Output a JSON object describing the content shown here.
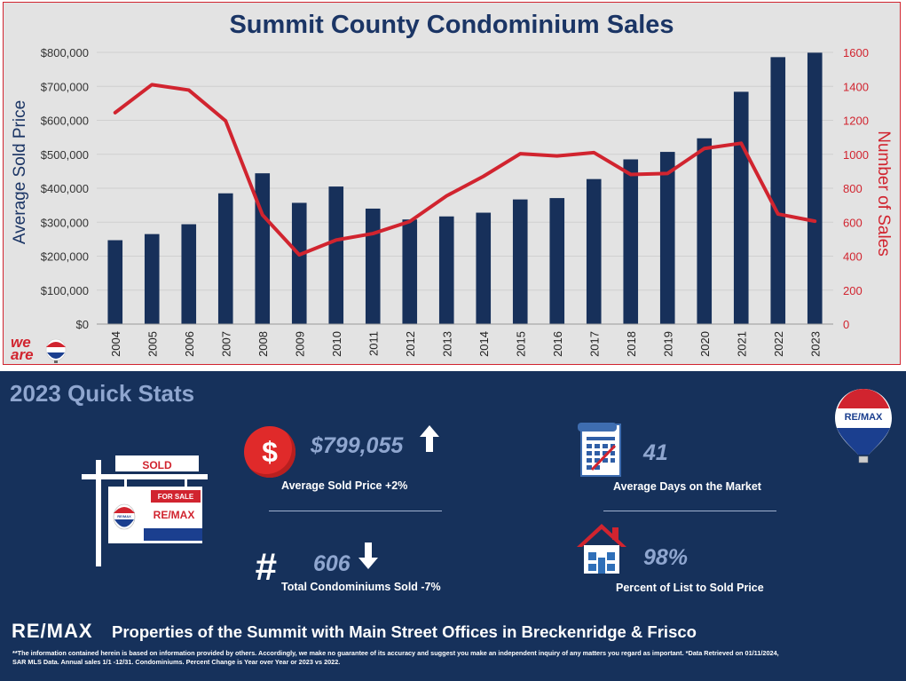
{
  "chart_data": {
    "type": "bar+line",
    "title": "Summit County Condominium Sales",
    "categories": [
      "2004",
      "2005",
      "2006",
      "2007",
      "2008",
      "2009",
      "2010",
      "2011",
      "2012",
      "2013",
      "2014",
      "2015",
      "2016",
      "2017",
      "2018",
      "2019",
      "2020",
      "2021",
      "2022",
      "2023"
    ],
    "series": [
      {
        "name": "Average Sold Price",
        "type": "bar",
        "axis": "left",
        "color": "#17305a",
        "values": [
          247000,
          265000,
          294000,
          385000,
          444000,
          357000,
          405000,
          340000,
          308000,
          317000,
          328000,
          367000,
          371000,
          427000,
          485000,
          507000,
          547000,
          684000,
          786000,
          799055
        ]
      },
      {
        "name": "Number of Sales",
        "type": "line",
        "axis": "right",
        "color": "#d1242f",
        "values": [
          1245,
          1410,
          1378,
          1197,
          643,
          408,
          495,
          533,
          604,
          755,
          870,
          1003,
          990,
          1010,
          881,
          887,
          1034,
          1065,
          648,
          606
        ]
      }
    ],
    "ylabel": "Average Sold Price",
    "y2label": "Number of Sales",
    "ylim": [
      0,
      800000
    ],
    "y2lim": [
      0,
      1600
    ],
    "yticks": [
      "$0",
      "$100,000",
      "$200,000",
      "$300,000",
      "$400,000",
      "$500,000",
      "$600,000",
      "$700,000",
      "$800,000"
    ],
    "y2ticks": [
      "0",
      "200",
      "400",
      "600",
      "800",
      "1000",
      "1200",
      "1400",
      "1600"
    ],
    "grid": true
  },
  "logo_we_are": {
    "line1": "we",
    "line2": "are"
  },
  "stats": {
    "heading": "2023 Quick Stats",
    "avg_price": {
      "value": "$799,055",
      "label": "Average Sold Price +2%",
      "icon": "dollar-icon",
      "trend": "up"
    },
    "days_market": {
      "value": "41",
      "label": "Average Days on the Market",
      "icon": "calendar-icon"
    },
    "total_sold": {
      "symbol": "#",
      "value": "606",
      "label": "Total Condominiums Sold -7%",
      "trend": "down"
    },
    "list_to_sold": {
      "value": "98%",
      "label": "Percent of List to Sold Price",
      "icon": "house-icon"
    }
  },
  "sign": {
    "top": "SOLD",
    "for_sale": "FOR SALE",
    "brand": "RE/MAX",
    "balloon_text": "RE/MAX"
  },
  "balloon": {
    "text": "RE/MAX"
  },
  "footer": {
    "brand": "RE/MAX",
    "tagline": "Properties of the Summit with Main Street Offices in Breckenridge & Frisco",
    "disclaimer_line1": "**The information contained herein is based on information provided by others. Accordingly, we make no guarantee of its accuracy and suggest you make an independent inquiry of any matters you regard as important. *Data Retrieved on 01/11/2024,",
    "disclaimer_line2": "SAR MLS Data. Annual sales 1/1 -12/31. Condominiums. Percent Change is Year over Year or 2023 vs 2022."
  },
  "colors": {
    "navy": "#16315b",
    "bar": "#17305a",
    "line": "#d1242f",
    "accent_label": "#8fa6cf"
  }
}
